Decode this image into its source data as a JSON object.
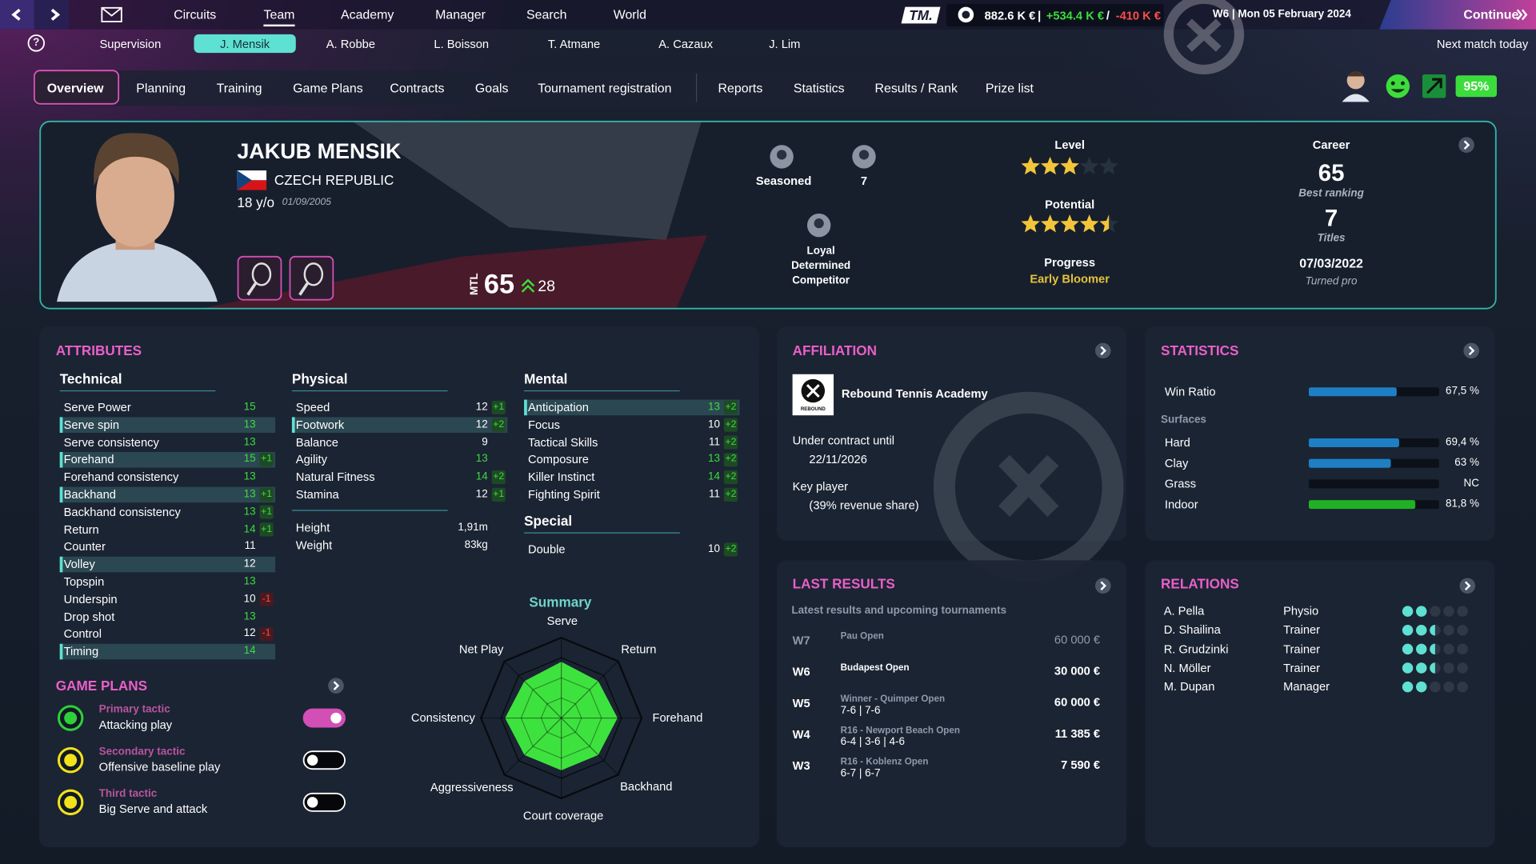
{
  "topbar": {
    "tabs": [
      "Circuits",
      "Team",
      "Academy",
      "Manager",
      "Search",
      "World"
    ],
    "active_tab": 1,
    "logo": "TM.",
    "money": "882.6 K €",
    "separator": "|",
    "gain": "+534.4 K €",
    "slash": "/",
    "loss": "-410 K €",
    "date": "W6 | Mon 05 February 2024",
    "continue": "Continue"
  },
  "players": {
    "help": "?",
    "supervision": "Supervision",
    "names": [
      "J. Mensik",
      "A. Robbe",
      "L. Boisson",
      "T. Atmane",
      "A. Cazaux",
      "J. Lim"
    ],
    "active": 0,
    "next_match": "Next match today"
  },
  "subtabs": {
    "items": [
      "Overview",
      "Planning",
      "Training",
      "Game Plans",
      "Contracts",
      "Goals",
      "Tournament registration",
      "Reports",
      "Statistics",
      "Results / Rank",
      "Prize list"
    ],
    "active": 0,
    "condition": "95%"
  },
  "profile": {
    "name": "JAKUB MENSIK",
    "country": "CZECH REPUBLIC",
    "age": "18 y/o",
    "birth_date": "01/09/2005",
    "rating_label": "MTL",
    "rating": 65,
    "rating_progress": 28,
    "experience": "Seasoned",
    "badge_count": 7,
    "personality": [
      "Loyal",
      "Determined",
      "Competitor"
    ],
    "level": {
      "label": "Level",
      "stars": 3,
      "max": 5
    },
    "potential": {
      "label": "Potential",
      "stars": 4.5,
      "max": 5
    },
    "progress": {
      "label": "Progress",
      "value": "Early Bloomer"
    },
    "career": {
      "title": "Career",
      "best_ranking": 65,
      "best_ranking_label": "Best ranking",
      "titles": 7,
      "titles_label": "Titles",
      "turned_pro": "07/03/2022",
      "turned_pro_label": "Turned pro"
    }
  },
  "attributes": {
    "title": "ATTRIBUTES",
    "technical": {
      "title": "Technical",
      "rows": [
        {
          "name": "Serve Power",
          "value": 15
        },
        {
          "name": "Serve spin",
          "value": 13,
          "highlight": true
        },
        {
          "name": "Serve consistency",
          "value": 13
        },
        {
          "name": "Forehand",
          "value": 15,
          "delta": "+1",
          "highlight": true
        },
        {
          "name": "Forehand consistency",
          "value": 13
        },
        {
          "name": "Backhand",
          "value": 13,
          "delta": "+1",
          "highlight": true
        },
        {
          "name": "Backhand consistency",
          "value": 13,
          "delta": "+1"
        },
        {
          "name": "Return",
          "value": 14,
          "delta": "+1"
        },
        {
          "name": "Counter",
          "value": 11
        },
        {
          "name": "Volley",
          "value": 12,
          "highlight": true
        },
        {
          "name": "Topspin",
          "value": 13
        },
        {
          "name": "Underspin",
          "value": 10,
          "delta": "-1"
        },
        {
          "name": "Drop shot",
          "value": 13
        },
        {
          "name": "Control",
          "value": 12,
          "delta": "-1"
        },
        {
          "name": "Timing",
          "value": 14,
          "highlight": true
        }
      ]
    },
    "physical": {
      "title": "Physical",
      "rows": [
        {
          "name": "Speed",
          "value": 12,
          "delta": "+1"
        },
        {
          "name": "Footwork",
          "value": 12,
          "delta": "+2",
          "highlight": true
        },
        {
          "name": "Balance",
          "value": 9
        },
        {
          "name": "Agility",
          "value": 13
        },
        {
          "name": "Natural Fitness",
          "value": 14,
          "delta": "+2"
        },
        {
          "name": "Stamina",
          "value": 12,
          "delta": "+1"
        }
      ],
      "extra": [
        {
          "name": "Height",
          "value": "1,91m"
        },
        {
          "name": "Weight",
          "value": "83kg"
        }
      ]
    },
    "mental": {
      "title": "Mental",
      "rows": [
        {
          "name": "Anticipation",
          "value": 13,
          "delta": "+2",
          "highlight": true
        },
        {
          "name": "Focus",
          "value": 10,
          "delta": "+2"
        },
        {
          "name": "Tactical Skills",
          "value": 11,
          "delta": "+2"
        },
        {
          "name": "Composure",
          "value": 13,
          "delta": "+2"
        },
        {
          "name": "Killer Instinct",
          "value": 14,
          "delta": "+2"
        },
        {
          "name": "Fighting Spirit",
          "value": 11,
          "delta": "+2"
        }
      ]
    },
    "special": {
      "title": "Special",
      "rows": [
        {
          "name": "Double",
          "value": 10,
          "delta": "+2"
        }
      ]
    }
  },
  "game_plans": {
    "title": "GAME PLANS",
    "items": [
      {
        "label": "Primary tactic",
        "value": "Attacking play",
        "enabled": true,
        "color": "#2fcf3a"
      },
      {
        "label": "Secondary tactic",
        "value": "Offensive baseline play",
        "enabled": false,
        "color": "#f2e21c"
      },
      {
        "label": "Third tactic",
        "value": "Big Serve and attack",
        "enabled": false,
        "color": "#f2e21c"
      }
    ]
  },
  "summary": {
    "title": "Summary",
    "axes": [
      "Serve",
      "Return",
      "Forehand",
      "Backhand",
      "Court coverage",
      "Aggressiveness",
      "Consistency",
      "Net Play"
    ],
    "values": [
      14,
      13,
      14,
      13,
      13,
      13,
      14,
      13
    ],
    "rlim": [
      0,
      20
    ],
    "color": "#3ee23e"
  },
  "affiliation": {
    "title": "AFFILIATION",
    "logo_text": "REBOUND",
    "academy": "Rebound Tennis Academy",
    "contract_label": "Under contract until",
    "contract_end": "22/11/2026",
    "status": "Key player",
    "revenue_share": "(39% revenue share)"
  },
  "statistics": {
    "title": "STATISTICS",
    "xlim": [
      0,
      100
    ],
    "win_ratio": {
      "name": "Win Ratio",
      "value": 67.5,
      "label": "67,5 %",
      "color": "#1f7fc4"
    },
    "surfaces_label": "Surfaces",
    "surfaces": [
      {
        "name": "Hard",
        "value": 69.4,
        "label": "69,4 %",
        "color": "#1f7fc4"
      },
      {
        "name": "Clay",
        "value": 63,
        "label": "63 %",
        "color": "#1f7fc4"
      },
      {
        "name": "Grass",
        "value": null,
        "label": "NC",
        "color": "#1f7fc4"
      },
      {
        "name": "Indoor",
        "value": 81.8,
        "label": "81,8 %",
        "color": "#22b024"
      }
    ]
  },
  "last_results": {
    "title": "LAST RESULTS",
    "subtitle": "Latest results and upcoming tournaments",
    "rows": [
      {
        "week": "W7",
        "event": "Pau Open",
        "prize": "60 000 €",
        "upcoming": true
      },
      {
        "week": "W6",
        "event": "Budapest Open",
        "prize": "30 000 €",
        "current": true
      },
      {
        "week": "W5",
        "event": "Winner - Quimper Open",
        "score": "7-6 |  7-6",
        "prize": "60 000 €"
      },
      {
        "week": "W4",
        "event": "R16 - Newport Beach Open",
        "score": "6-4 |  3-6 |  4-6",
        "prize": "11 385 €"
      },
      {
        "week": "W3",
        "event": "R16 - Koblenz Open",
        "score": "6-7 |  6-7",
        "prize": "7 590 €"
      }
    ]
  },
  "relations": {
    "title": "RELATIONS",
    "max": 5,
    "rows": [
      {
        "name": "A. Pella",
        "role": "Physio",
        "level": 2
      },
      {
        "name": "D. Shailina",
        "role": "Trainer",
        "level": 2.5
      },
      {
        "name": "R. Grudzinki",
        "role": "Trainer",
        "level": 2.5
      },
      {
        "name": "N. Möller",
        "role": "Trainer",
        "level": 2.5
      },
      {
        "name": "M. Dupan",
        "role": "Manager",
        "level": 2
      }
    ]
  }
}
